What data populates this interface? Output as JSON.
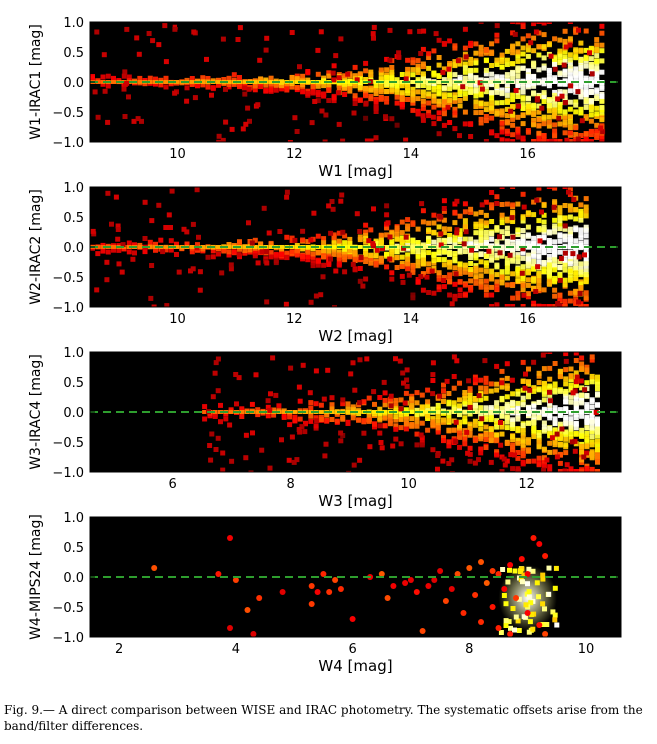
{
  "caption": "Fig. 9.— A direct comparison between WISE and IRAC photometry. The systematic offsets arise from the band/filter differences.",
  "colors": {
    "background": "#000000",
    "reference_line": "#2e9e2e",
    "density_low": "#cc1800",
    "density_high": "#ffffff"
  },
  "chart_data": [
    {
      "type": "heatmap",
      "colormap": "hot",
      "xlabel": "W1 [mag]",
      "ylabel": "W1-IRAC1 [mag]",
      "xlim": [
        8.5,
        17.6
      ],
      "ylim": [
        -1.0,
        1.0
      ],
      "xticks": [
        10,
        12,
        14,
        16
      ],
      "yticks": [
        1.0,
        0.5,
        0.0,
        -0.5,
        -1.0
      ],
      "ytick_labels": [
        "1.0",
        "0.5",
        "0.0",
        "−0.5",
        "−1.0"
      ],
      "reference_line": {
        "y": 0.0,
        "style": "dashed"
      },
      "density_envelope": [
        [
          8.5,
          0.15
        ],
        [
          10,
          0.1
        ],
        [
          12,
          0.15
        ],
        [
          13,
          0.3
        ],
        [
          14,
          0.5
        ],
        [
          15,
          0.75
        ],
        [
          16,
          1.0
        ],
        [
          16.8,
          1.0
        ],
        [
          17.2,
          0.9
        ]
      ],
      "data_end": 17.3
    },
    {
      "type": "heatmap",
      "colormap": "hot",
      "xlabel": "W2 [mag]",
      "ylabel": "W2-IRAC2 [mag]",
      "xlim": [
        8.5,
        17.6
      ],
      "ylim": [
        -1.0,
        1.0
      ],
      "xticks": [
        10,
        12,
        14,
        16
      ],
      "yticks": [
        1.0,
        0.5,
        0.0,
        -0.5,
        -1.0
      ],
      "ytick_labels": [
        "1.0",
        "0.5",
        "0.0",
        "−0.5",
        "−1.0"
      ],
      "reference_line": {
        "y": 0.0,
        "style": "dashed"
      },
      "density_envelope": [
        [
          8.5,
          0.15
        ],
        [
          10,
          0.1
        ],
        [
          12,
          0.18
        ],
        [
          13,
          0.35
        ],
        [
          14,
          0.55
        ],
        [
          15,
          0.8
        ],
        [
          16,
          1.0
        ],
        [
          16.9,
          1.0
        ]
      ],
      "data_end": 17.0
    },
    {
      "type": "heatmap",
      "colormap": "hot",
      "xlabel": "W3 [mag]",
      "ylabel": "W3-IRAC4 [mag]",
      "xlim": [
        4.6,
        13.6
      ],
      "ylim": [
        -1.0,
        1.0
      ],
      "xticks": [
        6,
        8,
        10,
        12
      ],
      "yticks": [
        1.0,
        0.5,
        0.0,
        -0.5,
        -1.0
      ],
      "ytick_labels": [
        "1.0",
        "0.5",
        "0.0",
        "−0.5",
        "−1.0"
      ],
      "reference_line": {
        "y": 0.0,
        "style": "dashed"
      },
      "density_envelope": [
        [
          6.5,
          0.15
        ],
        [
          8,
          0.2
        ],
        [
          9,
          0.25
        ],
        [
          10,
          0.4
        ],
        [
          11,
          0.6
        ],
        [
          12,
          0.9
        ],
        [
          13,
          1.0
        ]
      ],
      "data_end": 13.2
    },
    {
      "type": "scatter",
      "colormap": "hot",
      "xlabel": "W4 [mag]",
      "ylabel": "W4-MIPS24 [mag]",
      "xlim": [
        1.5,
        10.6
      ],
      "ylim": [
        -1.0,
        1.0
      ],
      "xticks": [
        2,
        4,
        6,
        8,
        10
      ],
      "yticks": [
        1.0,
        0.5,
        0.0,
        -0.5,
        -1.0
      ],
      "ytick_labels": [
        "1.0",
        "0.5",
        "0.0",
        "−0.5",
        "−1.0"
      ],
      "reference_line": {
        "y": 0.0,
        "style": "dashed"
      },
      "points": [
        [
          2.6,
          0.15
        ],
        [
          3.7,
          0.05
        ],
        [
          3.9,
          0.65
        ],
        [
          4.0,
          -0.05
        ],
        [
          3.9,
          -0.85
        ],
        [
          4.2,
          -0.55
        ],
        [
          4.3,
          -0.95
        ],
        [
          4.4,
          -0.35
        ],
        [
          4.8,
          -0.25
        ],
        [
          5.3,
          -0.15
        ],
        [
          5.3,
          -0.45
        ],
        [
          5.4,
          -0.25
        ],
        [
          5.6,
          -0.25
        ],
        [
          5.5,
          0.05
        ],
        [
          5.7,
          -0.05
        ],
        [
          5.8,
          -0.2
        ],
        [
          6.0,
          -0.7
        ],
        [
          6.3,
          0.0
        ],
        [
          6.5,
          0.05
        ],
        [
          6.6,
          -0.35
        ],
        [
          6.7,
          -0.15
        ],
        [
          6.9,
          -0.1
        ],
        [
          7.0,
          -0.05
        ],
        [
          7.1,
          -0.25
        ],
        [
          7.2,
          -0.9
        ],
        [
          7.3,
          -0.15
        ],
        [
          7.4,
          -0.05
        ],
        [
          7.5,
          0.1
        ],
        [
          7.6,
          -0.4
        ],
        [
          7.7,
          -0.2
        ],
        [
          7.8,
          0.05
        ],
        [
          7.9,
          -0.6
        ],
        [
          8.0,
          0.15
        ],
        [
          8.1,
          -0.3
        ],
        [
          8.2,
          -0.75
        ],
        [
          8.2,
          0.25
        ],
        [
          8.3,
          -0.1
        ],
        [
          8.4,
          -0.5
        ],
        [
          8.4,
          0.1
        ],
        [
          8.5,
          -0.85
        ],
        [
          8.5,
          0.05
        ],
        [
          8.6,
          -0.2
        ],
        [
          8.7,
          0.2
        ],
        [
          8.7,
          -0.95
        ],
        [
          8.8,
          -0.35
        ],
        [
          8.9,
          0.3
        ],
        [
          9.0,
          -0.6
        ],
        [
          9.0,
          0.05
        ],
        [
          9.1,
          0.65
        ],
        [
          9.2,
          0.55
        ],
        [
          9.2,
          -0.8
        ],
        [
          9.3,
          0.35
        ],
        [
          9.3,
          -0.95
        ]
      ],
      "dense_region": {
        "x": [
          8.5,
          9.5
        ],
        "y": [
          -0.9,
          0.2
        ]
      },
      "data_end": 9.5
    }
  ]
}
